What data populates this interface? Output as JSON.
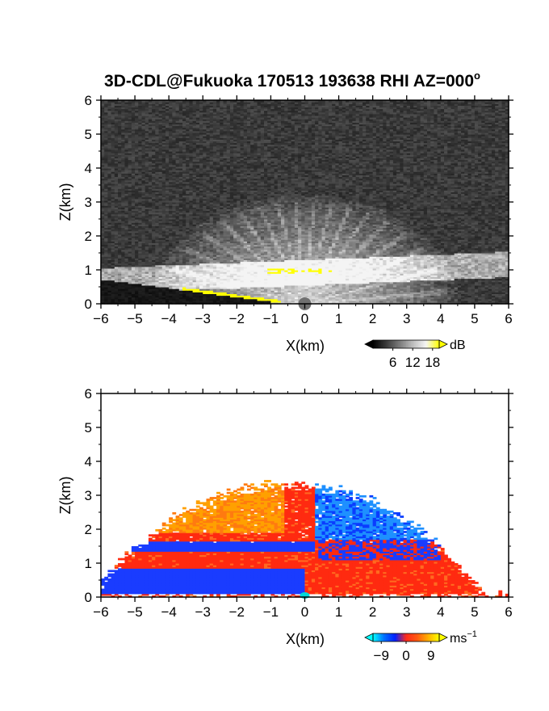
{
  "figure": {
    "title": "3D-CDL@Fukuoka 170513 193638 RHI AZ=000",
    "title_superscript": "o"
  },
  "chart_data": [
    {
      "type": "heatmap",
      "panel": "top",
      "quantity": "backscatter intensity",
      "xlabel": "X(km)",
      "ylabel": "Z(km)",
      "xlim": [
        -6,
        6
      ],
      "ylim": [
        0,
        6
      ],
      "xticks": [
        "-6",
        "-5",
        "-4",
        "-3",
        "-2",
        "-1",
        "0",
        "1",
        "2",
        "3",
        "4",
        "5",
        "6"
      ],
      "yticks": [
        "0",
        "1",
        "2",
        "3",
        "4",
        "5",
        "6"
      ],
      "grid": false,
      "colorbar": {
        "unit": "dB",
        "ticks": [
          "6",
          "12",
          "18"
        ],
        "range": [
          0,
          20
        ],
        "colormap": [
          "#000000",
          "#3a3a3a",
          "#7a7a7a",
          "#bdbdbd",
          "#f4f4f4",
          "#ffff00"
        ]
      },
      "features": {
        "background_noise_db": 3,
        "boundary_layer_height_km": [
          0.7,
          1.3
        ],
        "saturated_color": "#ffff00",
        "radar_x_km": 0
      }
    },
    {
      "type": "heatmap",
      "panel": "bottom",
      "quantity": "radial velocity",
      "xlabel": "X(km)",
      "ylabel": "Z(km)",
      "xlim": [
        -6,
        6
      ],
      "ylim": [
        0,
        6
      ],
      "xticks": [
        "-6",
        "-5",
        "-4",
        "-3",
        "-2",
        "-1",
        "0",
        "1",
        "2",
        "3",
        "4",
        "5",
        "6"
      ],
      "yticks": [
        "0",
        "1",
        "2",
        "3",
        "4",
        "5",
        "6"
      ],
      "grid": false,
      "colorbar": {
        "unit": "ms",
        "unit_superscript": "−1",
        "ticks": [
          "−9",
          "0",
          "9"
        ],
        "range": [
          -12,
          12
        ],
        "colormap": [
          "#00ffff",
          "#0070ff",
          "#0020ff",
          "#ff2a1a",
          "#ff5a10",
          "#ffb000",
          "#ffff00"
        ]
      },
      "features": {
        "echo_top_km": 3.3,
        "negative_color": "#1a3cff",
        "positive_color": "#ff2a10",
        "upper_left_color": "#ffa000",
        "upper_right_color": "#1e90ff"
      }
    }
  ]
}
